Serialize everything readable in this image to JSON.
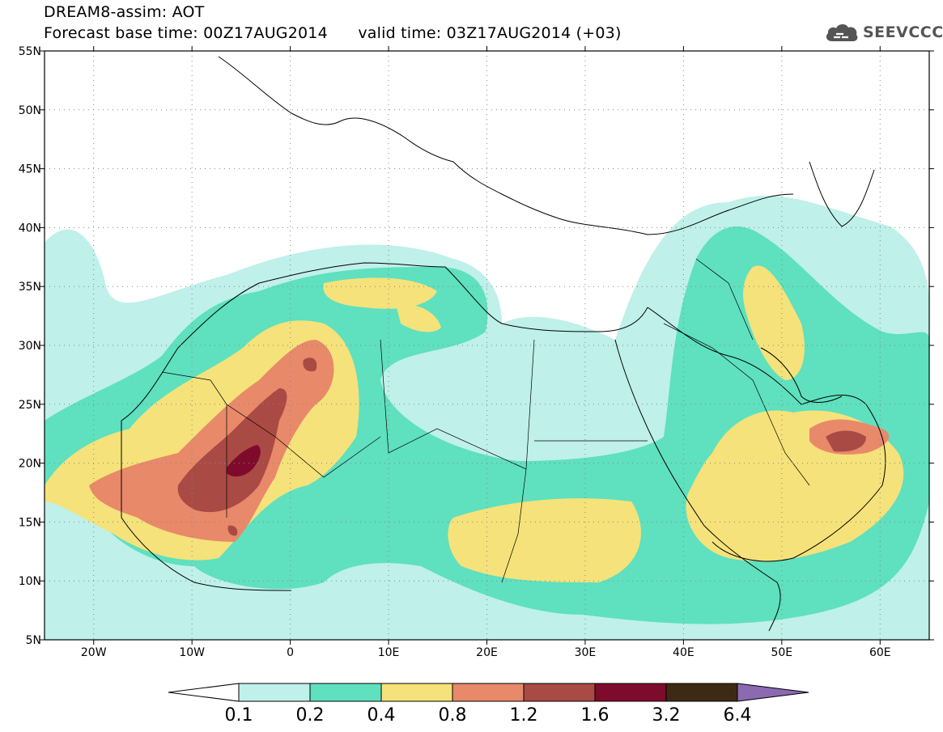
{
  "header": {
    "title": "DREAM8-assim: AOT",
    "base_time_label": "Forecast base time: 00Z17AUG2014",
    "valid_time_label": "valid time: 03Z17AUG2014 (+03)"
  },
  "logo": {
    "text": "SEEVCCC",
    "icon": "cloud-icon",
    "color": "#555555"
  },
  "map": {
    "lon_range": [
      -25,
      65
    ],
    "lat_range": [
      5,
      55
    ],
    "lon_ticks": [
      {
        "value": -20,
        "label": "20W"
      },
      {
        "value": -10,
        "label": "10W"
      },
      {
        "value": 0,
        "label": "0"
      },
      {
        "value": 10,
        "label": "10E"
      },
      {
        "value": 20,
        "label": "20E"
      },
      {
        "value": 30,
        "label": "30E"
      },
      {
        "value": 40,
        "label": "40E"
      },
      {
        "value": 50,
        "label": "50E"
      },
      {
        "value": 60,
        "label": "60E"
      }
    ],
    "lat_ticks": [
      {
        "value": 55,
        "label": "55N"
      },
      {
        "value": 50,
        "label": "50N"
      },
      {
        "value": 45,
        "label": "45N"
      },
      {
        "value": 40,
        "label": "40N"
      },
      {
        "value": 35,
        "label": "35N"
      },
      {
        "value": 30,
        "label": "30N"
      },
      {
        "value": 25,
        "label": "25N"
      },
      {
        "value": 20,
        "label": "20N"
      },
      {
        "value": 15,
        "label": "15N"
      },
      {
        "value": 10,
        "label": "10N"
      },
      {
        "value": 5,
        "label": "5N"
      }
    ],
    "grid": "dotted"
  },
  "colorbar": {
    "levels": [
      "0.1",
      "0.2",
      "0.4",
      "0.8",
      "1.2",
      "1.6",
      "3.2",
      "6.4"
    ],
    "colors": [
      "#ffffff",
      "#bff0e9",
      "#5fe0bf",
      "#f5e27a",
      "#e8896a",
      "#aa4a44",
      "#7e0b2c",
      "#3e2a14",
      "#8c6ab1"
    ]
  }
}
